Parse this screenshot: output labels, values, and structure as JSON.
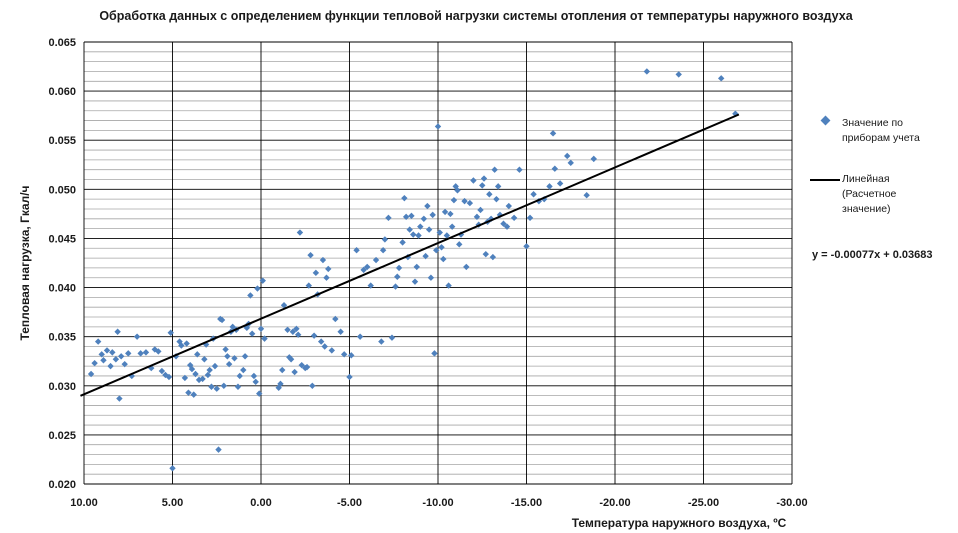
{
  "chart_data": {
    "type": "scatter",
    "title": "Обработка данных с определением функции тепловой нагрузки системы отопления от температуры наружного воздуха",
    "xlabel": "Температура наружного воздуха, ºС",
    "ylabel": "Тепловая нагрузка, Гкал/ч",
    "xlim": [
      10,
      -30
    ],
    "ylim": [
      0.02,
      0.065
    ],
    "x_ticks": [
      "10.00",
      "5.00",
      "0.00",
      "-5.00",
      "-10.00",
      "-15.00",
      "-20.00",
      "-25.00",
      "-30.00"
    ],
    "y_ticks": [
      "0.020",
      "0.025",
      "0.030",
      "0.035",
      "0.040",
      "0.045",
      "0.050",
      "0.055",
      "0.060",
      "0.065"
    ],
    "grid": true,
    "legend_position": "right",
    "legend": {
      "points_line1": "Значение по",
      "points_line2": "приборам учета",
      "line_line1": "Линейная",
      "line_line2": "(Расчетное",
      "line_line3": "значение)"
    },
    "equation": "y = -0.00077x + 0.03683",
    "trendline": {
      "slope": -0.00077,
      "intercept": 0.03683,
      "x_start": 10.2,
      "x_end": -27
    },
    "colors": {
      "points": "#4f81bd",
      "line": "#000000",
      "grid_major": "#000000",
      "grid_minor": "#a6a6a6"
    },
    "series": [
      {
        "name": "Значение по приборам учета",
        "points": [
          [
            9.6,
            0.0312
          ],
          [
            9.4,
            0.0323
          ],
          [
            9.2,
            0.0345
          ],
          [
            9.0,
            0.0332
          ],
          [
            8.9,
            0.0326
          ],
          [
            8.7,
            0.0336
          ],
          [
            8.5,
            0.032
          ],
          [
            8.4,
            0.0334
          ],
          [
            8.2,
            0.0327
          ],
          [
            8.1,
            0.0355
          ],
          [
            8.0,
            0.0287
          ],
          [
            7.9,
            0.033
          ],
          [
            7.7,
            0.0322
          ],
          [
            7.5,
            0.0333
          ],
          [
            7.3,
            0.031
          ],
          [
            7.0,
            0.035
          ],
          [
            6.8,
            0.0333
          ],
          [
            6.5,
            0.0334
          ],
          [
            6.2,
            0.0318
          ],
          [
            6.0,
            0.0337
          ],
          [
            5.8,
            0.0335
          ],
          [
            5.6,
            0.0315
          ],
          [
            5.4,
            0.0311
          ],
          [
            5.2,
            0.0309
          ],
          [
            5.1,
            0.0354
          ],
          [
            5.0,
            0.0216
          ],
          [
            4.8,
            0.033
          ],
          [
            4.6,
            0.0345
          ],
          [
            4.5,
            0.0341
          ],
          [
            4.3,
            0.0308
          ],
          [
            4.2,
            0.0343
          ],
          [
            4.1,
            0.0293
          ],
          [
            4.0,
            0.0321
          ],
          [
            3.9,
            0.0317
          ],
          [
            3.8,
            0.0291
          ],
          [
            3.7,
            0.0312
          ],
          [
            3.6,
            0.0332
          ],
          [
            3.5,
            0.0306
          ],
          [
            3.3,
            0.0307
          ],
          [
            3.2,
            0.0327
          ],
          [
            3.1,
            0.0342
          ],
          [
            3.0,
            0.0311
          ],
          [
            2.9,
            0.0316
          ],
          [
            2.8,
            0.0299
          ],
          [
            2.7,
            0.0348
          ],
          [
            2.6,
            0.032
          ],
          [
            2.5,
            0.0297
          ],
          [
            2.4,
            0.0235
          ],
          [
            2.3,
            0.0368
          ],
          [
            2.2,
            0.0367
          ],
          [
            2.1,
            0.03
          ],
          [
            2.0,
            0.0337
          ],
          [
            1.9,
            0.033
          ],
          [
            1.8,
            0.0322
          ],
          [
            1.7,
            0.0355
          ],
          [
            1.6,
            0.036
          ],
          [
            1.5,
            0.0328
          ],
          [
            1.4,
            0.0357
          ],
          [
            1.3,
            0.0299
          ],
          [
            1.2,
            0.031
          ],
          [
            1.0,
            0.0316
          ],
          [
            0.9,
            0.033
          ],
          [
            0.8,
            0.0359
          ],
          [
            0.7,
            0.0363
          ],
          [
            0.6,
            0.0392
          ],
          [
            0.5,
            0.0353
          ],
          [
            0.4,
            0.031
          ],
          [
            0.3,
            0.0304
          ],
          [
            0.2,
            0.0399
          ],
          [
            0.1,
            0.0292
          ],
          [
            0.0,
            0.0358
          ],
          [
            -0.1,
            0.0407
          ],
          [
            -0.2,
            0.0348
          ],
          [
            -1.0,
            0.0298
          ],
          [
            -1.1,
            0.0302
          ],
          [
            -1.2,
            0.0316
          ],
          [
            -1.3,
            0.0382
          ],
          [
            -1.5,
            0.0357
          ],
          [
            -1.6,
            0.0329
          ],
          [
            -1.7,
            0.0327
          ],
          [
            -1.8,
            0.0355
          ],
          [
            -1.9,
            0.0314
          ],
          [
            -2.0,
            0.0358
          ],
          [
            -2.1,
            0.0352
          ],
          [
            -2.2,
            0.0456
          ],
          [
            -2.3,
            0.0321
          ],
          [
            -2.5,
            0.0318
          ],
          [
            -2.6,
            0.0319
          ],
          [
            -2.7,
            0.0402
          ],
          [
            -2.8,
            0.0433
          ],
          [
            -2.9,
            0.03
          ],
          [
            -3.0,
            0.0351
          ],
          [
            -3.1,
            0.0415
          ],
          [
            -3.2,
            0.0393
          ],
          [
            -3.4,
            0.0345
          ],
          [
            -3.5,
            0.0428
          ],
          [
            -3.6,
            0.034
          ],
          [
            -3.7,
            0.041
          ],
          [
            -3.8,
            0.0419
          ],
          [
            -4.0,
            0.0336
          ],
          [
            -4.2,
            0.0368
          ],
          [
            -4.5,
            0.0355
          ],
          [
            -4.7,
            0.0332
          ],
          [
            -5.0,
            0.0309
          ],
          [
            -5.1,
            0.0331
          ],
          [
            -5.4,
            0.0438
          ],
          [
            -5.6,
            0.035
          ],
          [
            -5.8,
            0.0418
          ],
          [
            -6.0,
            0.0421
          ],
          [
            -6.2,
            0.0402
          ],
          [
            -6.5,
            0.0428
          ],
          [
            -6.8,
            0.0345
          ],
          [
            -6.9,
            0.0438
          ],
          [
            -7.0,
            0.0449
          ],
          [
            -7.2,
            0.0471
          ],
          [
            -7.4,
            0.0349
          ],
          [
            -7.6,
            0.0401
          ],
          [
            -7.7,
            0.0411
          ],
          [
            -7.8,
            0.042
          ],
          [
            -8.0,
            0.0446
          ],
          [
            -8.1,
            0.0491
          ],
          [
            -8.2,
            0.0472
          ],
          [
            -8.3,
            0.0431
          ],
          [
            -8.4,
            0.0459
          ],
          [
            -8.5,
            0.0473
          ],
          [
            -8.6,
            0.0454
          ],
          [
            -8.7,
            0.0406
          ],
          [
            -8.8,
            0.0421
          ],
          [
            -8.9,
            0.0453
          ],
          [
            -9.0,
            0.0462
          ],
          [
            -9.2,
            0.047
          ],
          [
            -9.3,
            0.0432
          ],
          [
            -9.4,
            0.0483
          ],
          [
            -9.5,
            0.0459
          ],
          [
            -9.6,
            0.041
          ],
          [
            -9.7,
            0.0474
          ],
          [
            -9.8,
            0.0333
          ],
          [
            -9.9,
            0.0438
          ],
          [
            -10.0,
            0.0564
          ],
          [
            -10.1,
            0.0456
          ],
          [
            -10.2,
            0.0441
          ],
          [
            -10.3,
            0.0429
          ],
          [
            -10.4,
            0.0477
          ],
          [
            -10.5,
            0.0453
          ],
          [
            -10.6,
            0.0402
          ],
          [
            -10.7,
            0.0475
          ],
          [
            -10.8,
            0.0462
          ],
          [
            -10.9,
            0.0489
          ],
          [
            -11.0,
            0.0503
          ],
          [
            -11.1,
            0.0499
          ],
          [
            -11.2,
            0.0444
          ],
          [
            -11.3,
            0.0454
          ],
          [
            -11.5,
            0.0488
          ],
          [
            -11.6,
            0.0421
          ],
          [
            -11.8,
            0.0486
          ],
          [
            -12.0,
            0.0509
          ],
          [
            -12.2,
            0.0472
          ],
          [
            -12.3,
            0.0464
          ],
          [
            -12.4,
            0.0479
          ],
          [
            -12.5,
            0.0504
          ],
          [
            -12.6,
            0.0511
          ],
          [
            -12.7,
            0.0434
          ],
          [
            -12.8,
            0.0467
          ],
          [
            -12.9,
            0.0495
          ],
          [
            -13.0,
            0.047
          ],
          [
            -13.1,
            0.0431
          ],
          [
            -13.2,
            0.052
          ],
          [
            -13.3,
            0.049
          ],
          [
            -13.4,
            0.0503
          ],
          [
            -13.5,
            0.0474
          ],
          [
            -13.7,
            0.0465
          ],
          [
            -13.9,
            0.0462
          ],
          [
            -14.0,
            0.0483
          ],
          [
            -14.3,
            0.0471
          ],
          [
            -14.6,
            0.052
          ],
          [
            -15.0,
            0.0442
          ],
          [
            -15.2,
            0.0471
          ],
          [
            -15.4,
            0.0495
          ],
          [
            -15.7,
            0.0488
          ],
          [
            -16.0,
            0.049
          ],
          [
            -16.3,
            0.0503
          ],
          [
            -16.5,
            0.0557
          ],
          [
            -16.6,
            0.0521
          ],
          [
            -16.9,
            0.0506
          ],
          [
            -17.3,
            0.0534
          ],
          [
            -17.5,
            0.0527
          ],
          [
            -18.4,
            0.0494
          ],
          [
            -18.8,
            0.0531
          ],
          [
            -21.8,
            0.062
          ],
          [
            -23.6,
            0.0617
          ],
          [
            -26.0,
            0.0613
          ],
          [
            -26.8,
            0.0577
          ]
        ]
      }
    ]
  }
}
